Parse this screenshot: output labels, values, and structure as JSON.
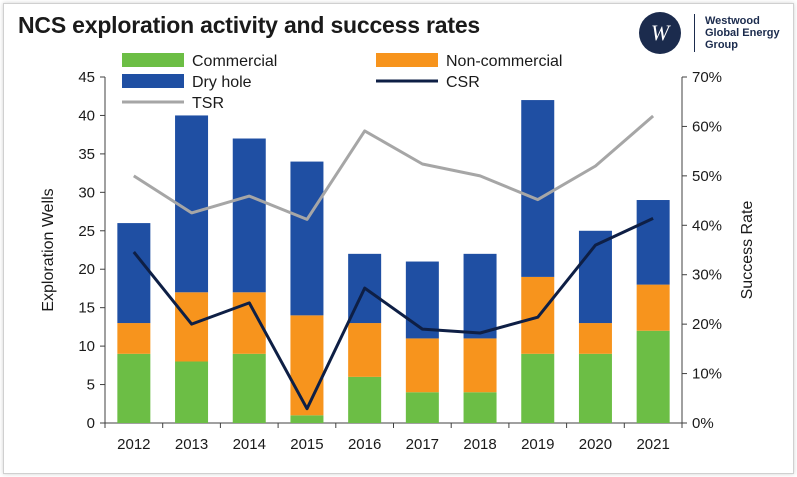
{
  "title": "NCS exploration activity and success rates",
  "logo": {
    "mark": "W",
    "lines": [
      "Westwood",
      "Global Energy",
      "Group"
    ]
  },
  "chart_data": {
    "type": "bar",
    "stacked": true,
    "categories": [
      "2012",
      "2013",
      "2014",
      "2015",
      "2016",
      "2017",
      "2018",
      "2019",
      "2020",
      "2021"
    ],
    "series": [
      {
        "name": "Commercial",
        "color": "#6cbe45",
        "values": [
          9,
          8,
          9,
          1,
          6,
          4,
          4,
          9,
          9,
          12
        ]
      },
      {
        "name": "Non-commercial",
        "color": "#f7941d",
        "values": [
          4,
          9,
          8,
          13,
          7,
          7,
          7,
          10,
          4,
          6
        ]
      },
      {
        "name": "Dry hole",
        "color": "#1f4fa3",
        "values": [
          13,
          23,
          20,
          20,
          9,
          10,
          11,
          23,
          12,
          11
        ]
      }
    ],
    "lines": [
      {
        "name": "CSR",
        "color": "#0e1f45",
        "axis": "right",
        "values": [
          34.6,
          20.0,
          24.3,
          2.9,
          27.3,
          19.0,
          18.2,
          21.4,
          36.0,
          41.4
        ]
      },
      {
        "name": "TSR",
        "color": "#a6a6a6",
        "axis": "right",
        "values": [
          50.0,
          42.5,
          45.9,
          41.2,
          59.1,
          52.4,
          50.0,
          45.2,
          52.0,
          62.1
        ]
      }
    ],
    "legend_order": [
      "Commercial",
      "Non-commercial",
      "Dry hole",
      "CSR",
      "TSR"
    ],
    "ylabel": "Exploration Wells",
    "ylabel_right": "Success Rate",
    "ylim": [
      0,
      45
    ],
    "yticks": [
      "0",
      "5",
      "10",
      "15",
      "20",
      "25",
      "30",
      "35",
      "40",
      "45"
    ],
    "ylim_right": [
      0,
      70
    ],
    "yticks_right": [
      "0%",
      "10%",
      "20%",
      "30%",
      "40%",
      "50%",
      "60%",
      "70%"
    ],
    "legend_position": "top-left"
  }
}
